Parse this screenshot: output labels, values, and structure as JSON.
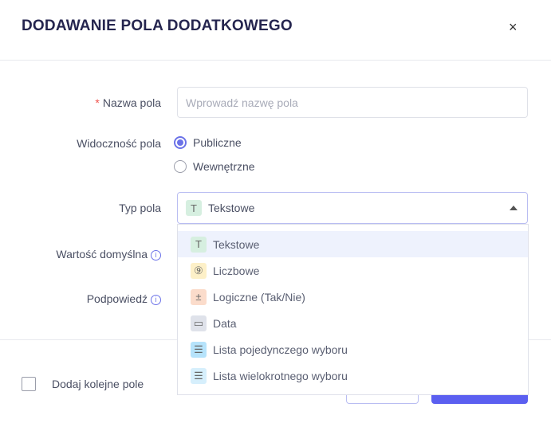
{
  "dialog": {
    "title": "DODAWANIE POLA DODATKOWEGO",
    "close_label": "×"
  },
  "form": {
    "name": {
      "required_mark": "*",
      "label": "Nazwa pola",
      "placeholder": "Wprowadź nazwę pola",
      "value": ""
    },
    "visibility": {
      "label": "Widoczność pola",
      "options": [
        "Publiczne",
        "Wewnętrzne"
      ],
      "selected": "Publiczne"
    },
    "type": {
      "label": "Typ pola",
      "selected": "Tekstowe",
      "selected_icon": "T",
      "options": [
        {
          "label": "Tekstowe",
          "icon": "text-icon",
          "glyph": "T",
          "color": "#d6efe0"
        },
        {
          "label": "Liczbowe",
          "icon": "number-icon",
          "glyph": "⑨",
          "color": "#fdf0c8"
        },
        {
          "label": "Logiczne (Tak/Nie)",
          "icon": "plus-minus-icon",
          "glyph": "±",
          "color": "#fbdccb"
        },
        {
          "label": "Data",
          "icon": "calendar-icon",
          "glyph": "▭",
          "color": "#dfe2ea"
        },
        {
          "label": "Lista pojedynczego wyboru",
          "icon": "single-list-icon",
          "glyph": "☰",
          "color": "#b6e3fb"
        },
        {
          "label": "Lista wielokrotnego wyboru",
          "icon": "multi-list-icon",
          "glyph": "☰",
          "color": "#d6effc"
        }
      ]
    },
    "default_value": {
      "label": "Wartość domyślna",
      "info": "i"
    },
    "hint": {
      "label": "Podpowiedź",
      "info": "i"
    }
  },
  "footer": {
    "add_another_label": "Dodaj kolejne pole",
    "add_another_checked": false
  },
  "colors": {
    "accent": "#5b5ff0",
    "title": "#25254f"
  }
}
